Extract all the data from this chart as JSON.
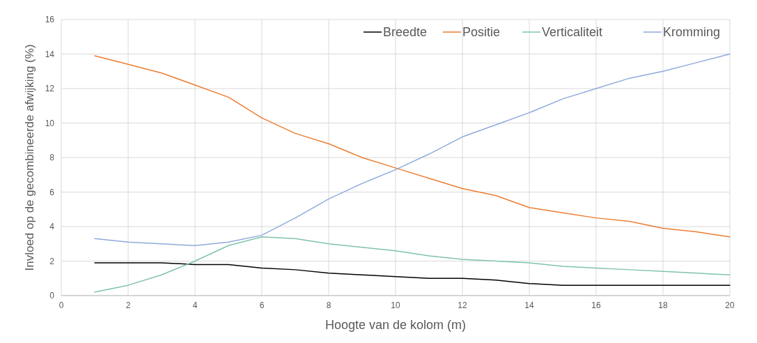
{
  "chart_data": {
    "type": "line",
    "xlabel": "Hoogte van de kolom (m)",
    "ylabel": "Invloed op de gecombineerde afwijking (%)",
    "x": [
      1,
      2,
      3,
      4,
      5,
      6,
      7,
      8,
      9,
      10,
      11,
      12,
      13,
      14,
      15,
      16,
      17,
      18,
      19,
      20
    ],
    "series": [
      {
        "name": "Breedte",
        "color": "#000000",
        "values": [
          1.9,
          1.9,
          1.9,
          1.8,
          1.8,
          1.6,
          1.5,
          1.3,
          1.2,
          1.1,
          1.0,
          1.0,
          0.9,
          0.7,
          0.6,
          0.6,
          0.6,
          0.6,
          0.6,
          0.6
        ]
      },
      {
        "name": "Positie",
        "color": "#ed7d31",
        "values": [
          13.9,
          13.4,
          12.9,
          12.2,
          11.5,
          10.3,
          9.4,
          8.8,
          8.0,
          7.4,
          6.8,
          6.2,
          5.8,
          5.1,
          4.8,
          4.5,
          4.3,
          3.9,
          3.7,
          3.4
        ]
      },
      {
        "name": "Verticaliteit",
        "color": "#7fc4a8",
        "values": [
          0.2,
          0.6,
          1.2,
          2.0,
          2.9,
          3.4,
          3.3,
          3.0,
          2.8,
          2.6,
          2.3,
          2.1,
          2.0,
          1.9,
          1.7,
          1.6,
          1.5,
          1.4,
          1.3,
          1.2
        ]
      },
      {
        "name": "Kromming",
        "color": "#8faadc",
        "values": [
          3.3,
          3.1,
          3.0,
          2.9,
          3.1,
          3.5,
          4.5,
          5.6,
          6.5,
          7.3,
          8.2,
          9.2,
          9.9,
          10.6,
          11.4,
          12.0,
          12.6,
          13.0,
          13.5,
          14.0
        ]
      }
    ],
    "xlim": [
      0,
      20
    ],
    "xticks": [
      0,
      2,
      4,
      6,
      8,
      10,
      12,
      14,
      16,
      18,
      20
    ],
    "ylim": [
      0,
      16
    ],
    "yticks": [
      0,
      2,
      4,
      6,
      8,
      10,
      12,
      14,
      16
    ],
    "grid": true,
    "legend": "top right",
    "marker": "none",
    "line_style": "solid"
  }
}
